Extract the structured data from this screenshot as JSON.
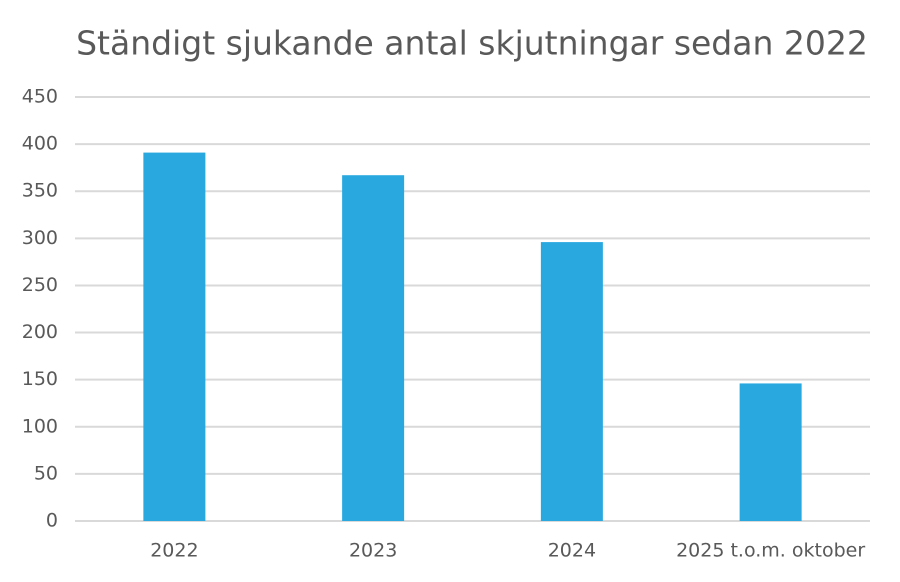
{
  "chart_data": {
    "type": "bar",
    "title": "Ständigt sjukande antal skjutningar sedan 2022",
    "categories": [
      "2022",
      "2023",
      "2024",
      "2025 t.o.m. oktober"
    ],
    "values": [
      391,
      367,
      296,
      146
    ],
    "color": "#29a8e0",
    "ylim": [
      0,
      450
    ],
    "yticks": [
      0,
      50,
      100,
      150,
      200,
      250,
      300,
      350,
      400,
      450
    ],
    "grid": true
  }
}
